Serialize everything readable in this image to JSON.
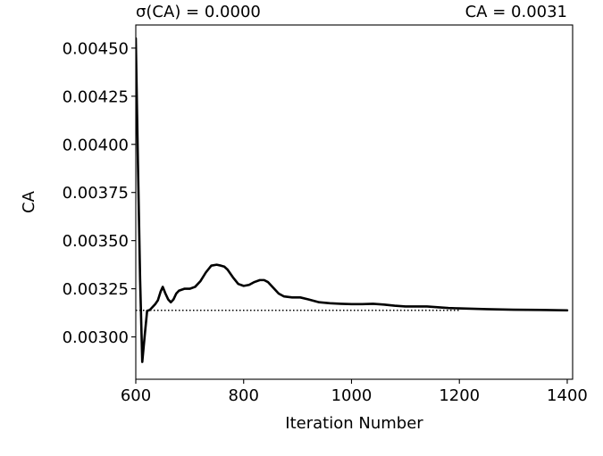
{
  "chart_data": {
    "type": "line",
    "title_left": "σ(CA) = 0.0000",
    "title_right": "CA = 0.0031",
    "xlabel": "Iteration Number",
    "ylabel": "CA",
    "xlim": [
      600,
      1410
    ],
    "ylim": [
      0.00278,
      0.00462
    ],
    "xticks": [
      600,
      800,
      1000,
      1200,
      1400
    ],
    "xtick_labels": [
      "600",
      "800",
      "1000",
      "1200",
      "1400"
    ],
    "yticks": [
      0.003,
      0.00325,
      0.0035,
      0.00375,
      0.004,
      0.00425,
      0.0045
    ],
    "ytick_labels": [
      "0.00300",
      "0.00325",
      "0.00350",
      "0.00375",
      "0.00400",
      "0.00425",
      "0.00450"
    ],
    "grid": false,
    "reference_line": {
      "y": 0.003138,
      "x_start": 600,
      "x_end": 1200,
      "style": "dotted",
      "color": "#000000"
    },
    "series": [
      {
        "color": "#000000",
        "x": [
          600,
          604,
          608,
          612,
          617,
          621,
          626,
          631,
          636,
          641,
          646,
          650,
          655,
          660,
          665,
          670,
          675,
          680,
          690,
          700,
          710,
          720,
          730,
          740,
          750,
          758,
          764,
          770,
          780,
          790,
          800,
          810,
          820,
          830,
          838,
          845,
          855,
          865,
          875,
          890,
          905,
          920,
          940,
          960,
          980,
          1000,
          1020,
          1040,
          1060,
          1080,
          1100,
          1120,
          1140,
          1160,
          1180,
          1200,
          1250,
          1300,
          1350,
          1400
        ],
        "y": [
          0.00455,
          0.0039,
          0.0033,
          0.00287,
          0.00302,
          0.003135,
          0.00314,
          0.003155,
          0.00317,
          0.00319,
          0.003235,
          0.00326,
          0.003225,
          0.003195,
          0.00318,
          0.003195,
          0.003225,
          0.00324,
          0.00325,
          0.00325,
          0.00326,
          0.00329,
          0.003335,
          0.00337,
          0.003375,
          0.00337,
          0.003365,
          0.00335,
          0.00331,
          0.003275,
          0.003265,
          0.00327,
          0.003285,
          0.003295,
          0.003295,
          0.003285,
          0.003255,
          0.003225,
          0.00321,
          0.003205,
          0.003205,
          0.003195,
          0.00318,
          0.003175,
          0.003172,
          0.00317,
          0.00317,
          0.003172,
          0.003168,
          0.003162,
          0.003158,
          0.003158,
          0.003158,
          0.003154,
          0.00315,
          0.003148,
          0.003144,
          0.003141,
          0.00314,
          0.003138
        ]
      }
    ]
  }
}
